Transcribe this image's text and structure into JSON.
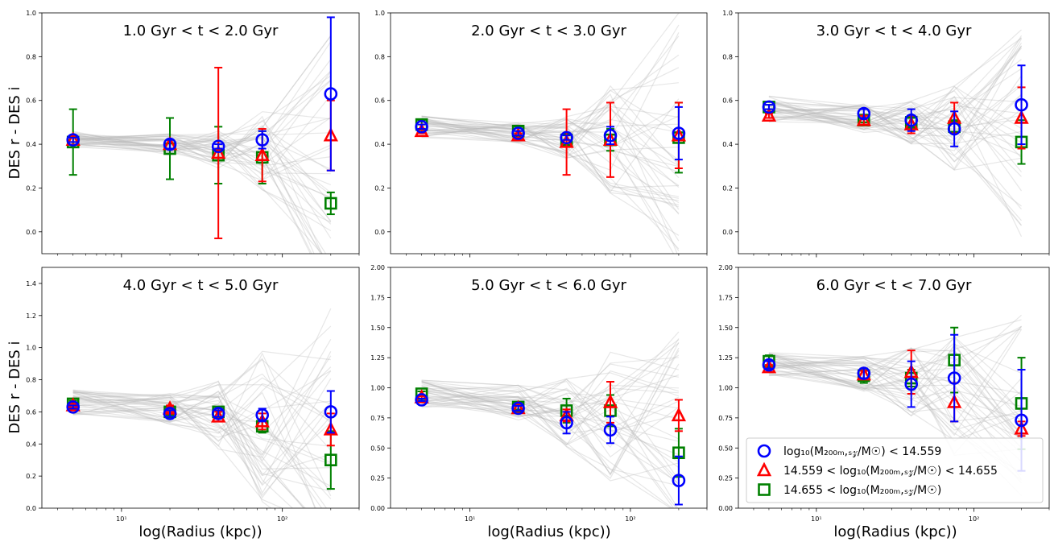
{
  "figure": {
    "ylabel": "DES r - DES i",
    "xlabel": "log(Radius (kpc))",
    "xlim": [
      3.2,
      300
    ],
    "x_scale": "log",
    "legend_panel": 5,
    "legend_placement": "lower-right",
    "colors": {
      "low": "#0000ff",
      "mid": "#ff0000",
      "high": "#008000",
      "overlap": "#800080",
      "background": "#bbbbbb"
    },
    "legend": {
      "low": "log₁₀(M₂₀₀ₘ,ₛ𝓏/M☉) < 14.559",
      "mid": "14.559 < log₁₀(M₂₀₀ₘ,ₛ𝓏/M☉) < 14.655",
      "high": "14.655 < log₁₀(M₂₀₀ₘ,ₛ𝓏/M☉)"
    }
  },
  "chart_data": [
    {
      "type": "scatter",
      "title": "1.0 Gyr < t < 2.0 Gyr",
      "ylim": [
        -0.1,
        1.0
      ],
      "yticks": [
        "0.0",
        "0.2",
        "0.4",
        "0.6",
        "0.8",
        "1.0"
      ],
      "ytick_values": [
        0.0,
        0.2,
        0.4,
        0.6,
        0.8,
        1.0
      ],
      "xticks": [],
      "series": [
        {
          "key": "low",
          "marker": "circle",
          "x": [
            5,
            20,
            40,
            75,
            200
          ],
          "y": [
            0.42,
            0.4,
            0.39,
            0.42,
            0.63
          ],
          "err": [
            0.01,
            0.02,
            0.01,
            0.04,
            0.35
          ]
        },
        {
          "key": "mid",
          "marker": "triangle",
          "x": [
            5,
            20,
            40,
            75,
            200
          ],
          "y": [
            0.42,
            0.4,
            0.36,
            0.35,
            0.44
          ],
          "err": [
            0.01,
            0.02,
            0.39,
            0.12,
            0.16
          ]
        },
        {
          "key": "high",
          "marker": "square",
          "x": [
            5,
            20,
            40,
            75,
            200
          ],
          "y": [
            0.41,
            0.38,
            0.35,
            0.34,
            0.13
          ],
          "err": [
            0.15,
            0.14,
            0.13,
            0.12,
            0.05
          ]
        }
      ],
      "background_center": [
        0.42,
        0.4,
        0.38,
        0.37,
        0.3
      ],
      "background_spread": [
        0.04,
        0.05,
        0.09,
        0.18,
        0.6
      ]
    },
    {
      "type": "scatter",
      "title": "2.0 Gyr < t < 3.0 Gyr",
      "ylim": [
        -0.1,
        1.0
      ],
      "yticks": [
        "0.0",
        "0.2",
        "0.4",
        "0.6",
        "0.8",
        "1.0"
      ],
      "ytick_values": [
        0.0,
        0.2,
        0.4,
        0.6,
        0.8,
        1.0
      ],
      "xticks": [],
      "series": [
        {
          "key": "low",
          "marker": "circle",
          "x": [
            5,
            20,
            40,
            75,
            200
          ],
          "y": [
            0.48,
            0.45,
            0.43,
            0.44,
            0.45
          ],
          "err": [
            0.01,
            0.01,
            0.01,
            0.04,
            0.12
          ]
        },
        {
          "key": "mid",
          "marker": "triangle",
          "x": [
            5,
            20,
            40,
            75,
            200
          ],
          "y": [
            0.46,
            0.44,
            0.41,
            0.42,
            0.44
          ],
          "err": [
            0.01,
            0.01,
            0.15,
            0.17,
            0.15
          ]
        },
        {
          "key": "high",
          "marker": "square",
          "x": [
            5,
            20,
            40,
            75,
            200
          ],
          "y": [
            0.49,
            0.46,
            0.42,
            0.42,
            0.43
          ],
          "err": [
            0.02,
            0.02,
            0.03,
            0.05,
            0.16
          ]
        }
      ],
      "background_center": [
        0.48,
        0.45,
        0.43,
        0.42,
        0.42
      ],
      "background_spread": [
        0.05,
        0.05,
        0.1,
        0.25,
        0.6
      ]
    },
    {
      "type": "scatter",
      "title": "3.0 Gyr < t < 4.0 Gyr",
      "ylim": [
        -0.1,
        1.0
      ],
      "yticks": [
        "0.0",
        "0.2",
        "0.4",
        "0.6",
        "0.8",
        "1.0"
      ],
      "ytick_values": [
        0.0,
        0.2,
        0.4,
        0.6,
        0.8,
        1.0
      ],
      "xticks": [],
      "series": [
        {
          "key": "low",
          "marker": "circle",
          "x": [
            5,
            20,
            40,
            75,
            200
          ],
          "y": [
            0.57,
            0.54,
            0.51,
            0.47,
            0.58
          ],
          "err": [
            0.01,
            0.02,
            0.05,
            0.08,
            0.18
          ]
        },
        {
          "key": "mid",
          "marker": "triangle",
          "x": [
            5,
            20,
            40,
            75,
            200
          ],
          "y": [
            0.53,
            0.51,
            0.49,
            0.52,
            0.52
          ],
          "err": [
            0.01,
            0.02,
            0.04,
            0.07,
            0.14
          ]
        },
        {
          "key": "high",
          "marker": "square",
          "x": [
            5,
            20,
            40,
            75,
            200
          ],
          "y": [
            0.57,
            0.51,
            0.5,
            0.48,
            0.41
          ],
          "err": [
            0.01,
            0.01,
            0.02,
            0.03,
            0.1
          ]
        }
      ],
      "background_center": [
        0.56,
        0.52,
        0.5,
        0.48,
        0.46
      ],
      "background_spread": [
        0.06,
        0.07,
        0.1,
        0.2,
        0.5
      ]
    },
    {
      "type": "scatter",
      "title": "4.0 Gyr < t < 5.0 Gyr",
      "ylim": [
        0.0,
        1.5
      ],
      "yticks": [
        "0.0",
        "0.2",
        "0.4",
        "0.6",
        "0.8",
        "1.0",
        "1.2",
        "1.4"
      ],
      "ytick_values": [
        0.0,
        0.2,
        0.4,
        0.6,
        0.8,
        1.0,
        1.2,
        1.4
      ],
      "xticks": [
        "10¹",
        "10²"
      ],
      "xtick_values": [
        10,
        100
      ],
      "series": [
        {
          "key": "low",
          "marker": "circle",
          "x": [
            5,
            20,
            40,
            75,
            200
          ],
          "y": [
            0.63,
            0.59,
            0.59,
            0.58,
            0.6
          ],
          "err": [
            0.01,
            0.02,
            0.02,
            0.04,
            0.13
          ]
        },
        {
          "key": "mid",
          "marker": "triangle",
          "x": [
            5,
            20,
            40,
            75,
            200
          ],
          "y": [
            0.64,
            0.62,
            0.57,
            0.54,
            0.49
          ],
          "err": [
            0.01,
            0.02,
            0.03,
            0.05,
            0.1
          ]
        },
        {
          "key": "high",
          "marker": "square",
          "x": [
            5,
            20,
            40,
            75,
            200
          ],
          "y": [
            0.65,
            0.6,
            0.6,
            0.51,
            0.3
          ],
          "err": [
            0.02,
            0.02,
            0.03,
            0.04,
            0.18
          ]
        }
      ],
      "background_center": [
        0.66,
        0.62,
        0.58,
        0.54,
        0.5
      ],
      "background_spread": [
        0.08,
        0.1,
        0.25,
        0.5,
        0.8
      ]
    },
    {
      "type": "scatter",
      "title": "5.0 Gyr < t < 6.0 Gyr",
      "ylim": [
        0.0,
        2.0
      ],
      "yticks": [
        "0.00",
        "0.25",
        "0.50",
        "0.75",
        "1.00",
        "1.25",
        "1.50",
        "1.75",
        "2.00"
      ],
      "ytick_values": [
        0.0,
        0.25,
        0.5,
        0.75,
        1.0,
        1.25,
        1.5,
        1.75,
        2.0
      ],
      "xticks": [
        "10¹",
        "10²"
      ],
      "xtick_values": [
        10,
        100
      ],
      "series": [
        {
          "key": "low",
          "marker": "circle",
          "x": [
            5,
            20,
            40,
            75,
            200
          ],
          "y": [
            0.9,
            0.83,
            0.71,
            0.65,
            0.23
          ],
          "err": [
            0.01,
            0.02,
            0.09,
            0.11,
            0.2
          ]
        },
        {
          "key": "mid",
          "marker": "triangle",
          "x": [
            5,
            20,
            40,
            75,
            200
          ],
          "y": [
            0.92,
            0.83,
            0.77,
            0.88,
            0.77
          ],
          "err": [
            0.01,
            0.02,
            0.05,
            0.17,
            0.13
          ]
        },
        {
          "key": "high",
          "marker": "square",
          "x": [
            5,
            20,
            40,
            75,
            200
          ],
          "y": [
            0.95,
            0.84,
            0.81,
            0.81,
            0.46
          ],
          "err": [
            0.02,
            0.02,
            0.1,
            0.13,
            0.2
          ]
        }
      ],
      "background_center": [
        0.95,
        0.88,
        0.8,
        0.75,
        0.7
      ],
      "background_spread": [
        0.12,
        0.15,
        0.3,
        0.55,
        0.8
      ]
    },
    {
      "type": "scatter",
      "title": "6.0 Gyr < t < 7.0 Gyr",
      "ylim": [
        0.0,
        2.0
      ],
      "yticks": [
        "0.00",
        "0.25",
        "0.50",
        "0.75",
        "1.00",
        "1.25",
        "1.50",
        "1.75",
        "2.00"
      ],
      "ytick_values": [
        0.0,
        0.25,
        0.5,
        0.75,
        1.0,
        1.25,
        1.5,
        1.75,
        2.0
      ],
      "xticks": [
        "10¹",
        "10²"
      ],
      "xtick_values": [
        10,
        100
      ],
      "series": [
        {
          "key": "low",
          "marker": "circle",
          "x": [
            5,
            20,
            40,
            75,
            200
          ],
          "y": [
            1.19,
            1.12,
            1.03,
            1.08,
            0.73
          ],
          "err": [
            0.03,
            0.04,
            0.19,
            0.36,
            0.42
          ]
        },
        {
          "key": "mid",
          "marker": "triangle",
          "x": [
            5,
            20,
            40,
            75,
            200
          ],
          "y": [
            1.17,
            1.11,
            1.13,
            0.88,
            0.66
          ],
          "err": [
            0.02,
            0.03,
            0.18,
            0.16,
            0.06
          ]
        },
        {
          "key": "high",
          "marker": "square",
          "x": [
            5,
            20,
            40,
            75,
            200
          ],
          "y": [
            1.22,
            1.1,
            1.08,
            1.23,
            0.87
          ],
          "err": [
            0.05,
            0.06,
            0.07,
            0.27,
            0.38
          ]
        }
      ],
      "background_center": [
        1.2,
        1.12,
        1.05,
        0.98,
        0.9
      ],
      "background_spread": [
        0.1,
        0.15,
        0.3,
        0.55,
        0.8
      ]
    }
  ]
}
